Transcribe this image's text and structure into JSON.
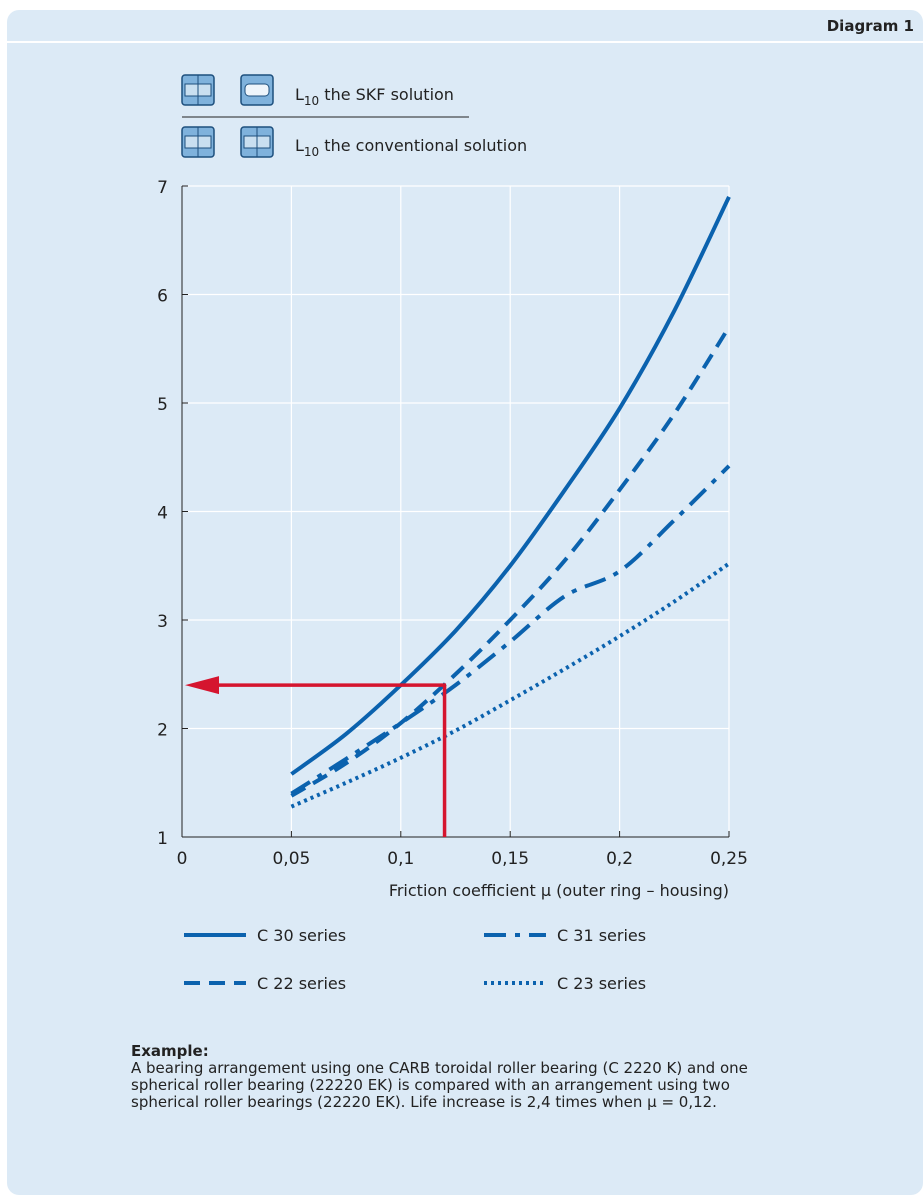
{
  "diagram_label": "Diagram 1",
  "header_legend": {
    "skf": "the SKF solution",
    "conventional": "the conventional solution",
    "symbol_base": "L",
    "symbol_sub": "10"
  },
  "chart_data": {
    "type": "line",
    "xlabel": "Friction coefficient μ (outer ring – housing)",
    "ylabel": "",
    "xlim": [
      0,
      0.25
    ],
    "ylim": [
      1,
      7
    ],
    "x_ticks": [
      "0",
      "0,05",
      "0,1",
      "0,15",
      "0,2",
      "0,25"
    ],
    "y_ticks": [
      "1",
      "2",
      "3",
      "4",
      "5",
      "6",
      "7"
    ],
    "grid": true,
    "colors": {
      "series": "#0b62ae",
      "annotation": "#d5152f"
    },
    "x": [
      0.05,
      0.075,
      0.1,
      0.125,
      0.15,
      0.175,
      0.2,
      0.225,
      0.25
    ],
    "series": [
      {
        "name": "C 30 series",
        "style": "solid",
        "values": [
          1.58,
          1.95,
          2.4,
          2.9,
          3.5,
          4.2,
          4.95,
          5.85,
          6.9
        ]
      },
      {
        "name": "C 22 series",
        "style": "dashed",
        "values": [
          1.38,
          1.68,
          2.05,
          2.5,
          3.0,
          3.55,
          4.2,
          4.9,
          5.7
        ]
      },
      {
        "name": "C 31 series",
        "style": "dashdot",
        "values": [
          1.4,
          1.72,
          2.05,
          2.4,
          2.8,
          3.22,
          3.45,
          3.92,
          4.42
        ]
      },
      {
        "name": "C 23 series",
        "style": "dotted",
        "values": [
          1.28,
          1.5,
          1.73,
          1.98,
          2.26,
          2.55,
          2.85,
          3.17,
          3.52
        ]
      }
    ],
    "annotation": {
      "x": 0.12,
      "y": 2.4
    }
  },
  "example": {
    "title": "Example:",
    "text": "A bearing arrangement using one CARB toroidal roller bearing (C 2220 K) and one spherical roller bearing (22220 EK) is compared with an arrangement using two spherical roller bearings (22220 EK). Life increase is 2,4 times when μ = 0,12."
  }
}
